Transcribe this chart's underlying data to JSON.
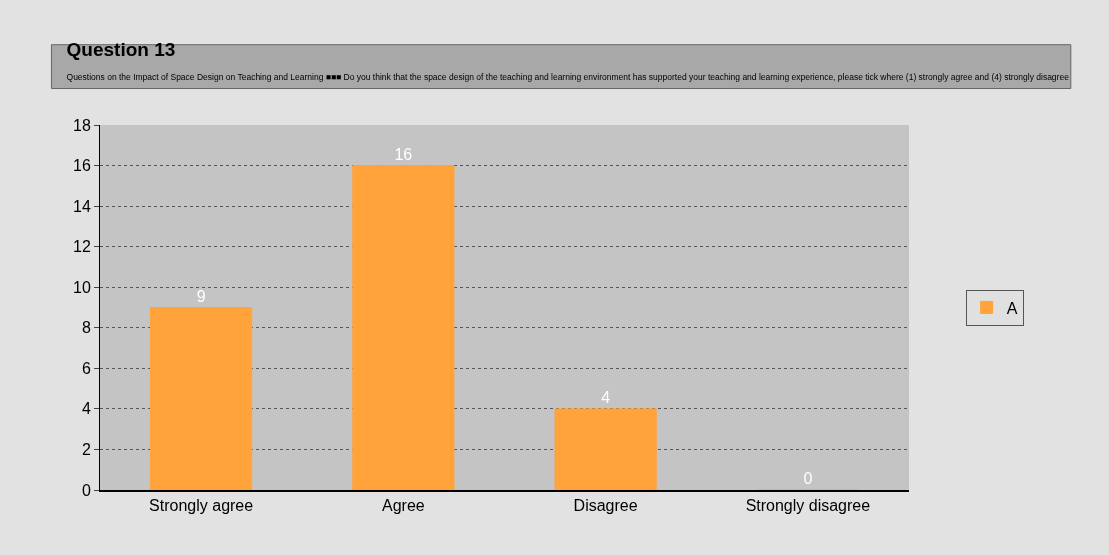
{
  "chart_data": {
    "type": "bar",
    "title": "Question 13",
    "subtitle": "Questions on the Impact of Space Design on Teaching and Learning ■■■ Do you think that the space design of the teaching and learning environment has supported your teaching and learning experience, please tick where (1) strongly agree and (4) strongly disagree",
    "categories": [
      "Strongly agree",
      "Agree",
      "Disagree",
      "Strongly disagree"
    ],
    "series": [
      {
        "name": "A",
        "color": "#ffa33a",
        "values": [
          9,
          16,
          4,
          0
        ]
      }
    ],
    "ylim": [
      0,
      18
    ],
    "yticks": [
      0,
      2,
      4,
      6,
      8,
      10,
      12,
      14,
      16,
      18
    ],
    "grid": "y",
    "legend": "right",
    "data_labels": true
  }
}
